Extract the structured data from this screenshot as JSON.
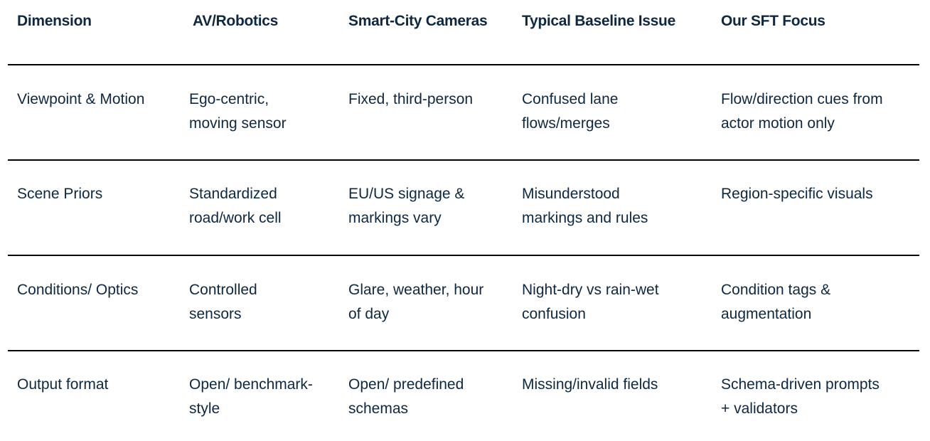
{
  "table": {
    "headers": [
      "Dimension",
      "AV/Robotics",
      "Smart-City Cameras",
      "Typical Baseline Issue",
      "Our SFT Focus"
    ],
    "rows": [
      [
        "Viewpoint & Motion",
        "Ego-centric,\nmoving sensor",
        "Fixed, third-person",
        "Confused lane\nflows/merges",
        "Flow/direction cues from\nactor motion only"
      ],
      [
        "Scene Priors",
        "Standardized\nroad/work cell",
        "EU/US signage &\nmarkings vary",
        "Misunderstood\nmarkings and rules",
        "Region-specific visuals"
      ],
      [
        "Conditions/ Optics",
        "Controlled\nsensors",
        "Glare, weather, hour\nof day",
        "Night-dry vs rain-wet\nconfusion",
        "Condition tags &\naugmentation"
      ],
      [
        "Output format",
        "Open/ benchmark-\nstyle",
        "Open/ predefined\nschemas",
        "Missing/invalid fields",
        "Schema-driven prompts\n+ validators"
      ]
    ]
  },
  "colors": {
    "text": "#0e2841",
    "rule": "#000000"
  }
}
